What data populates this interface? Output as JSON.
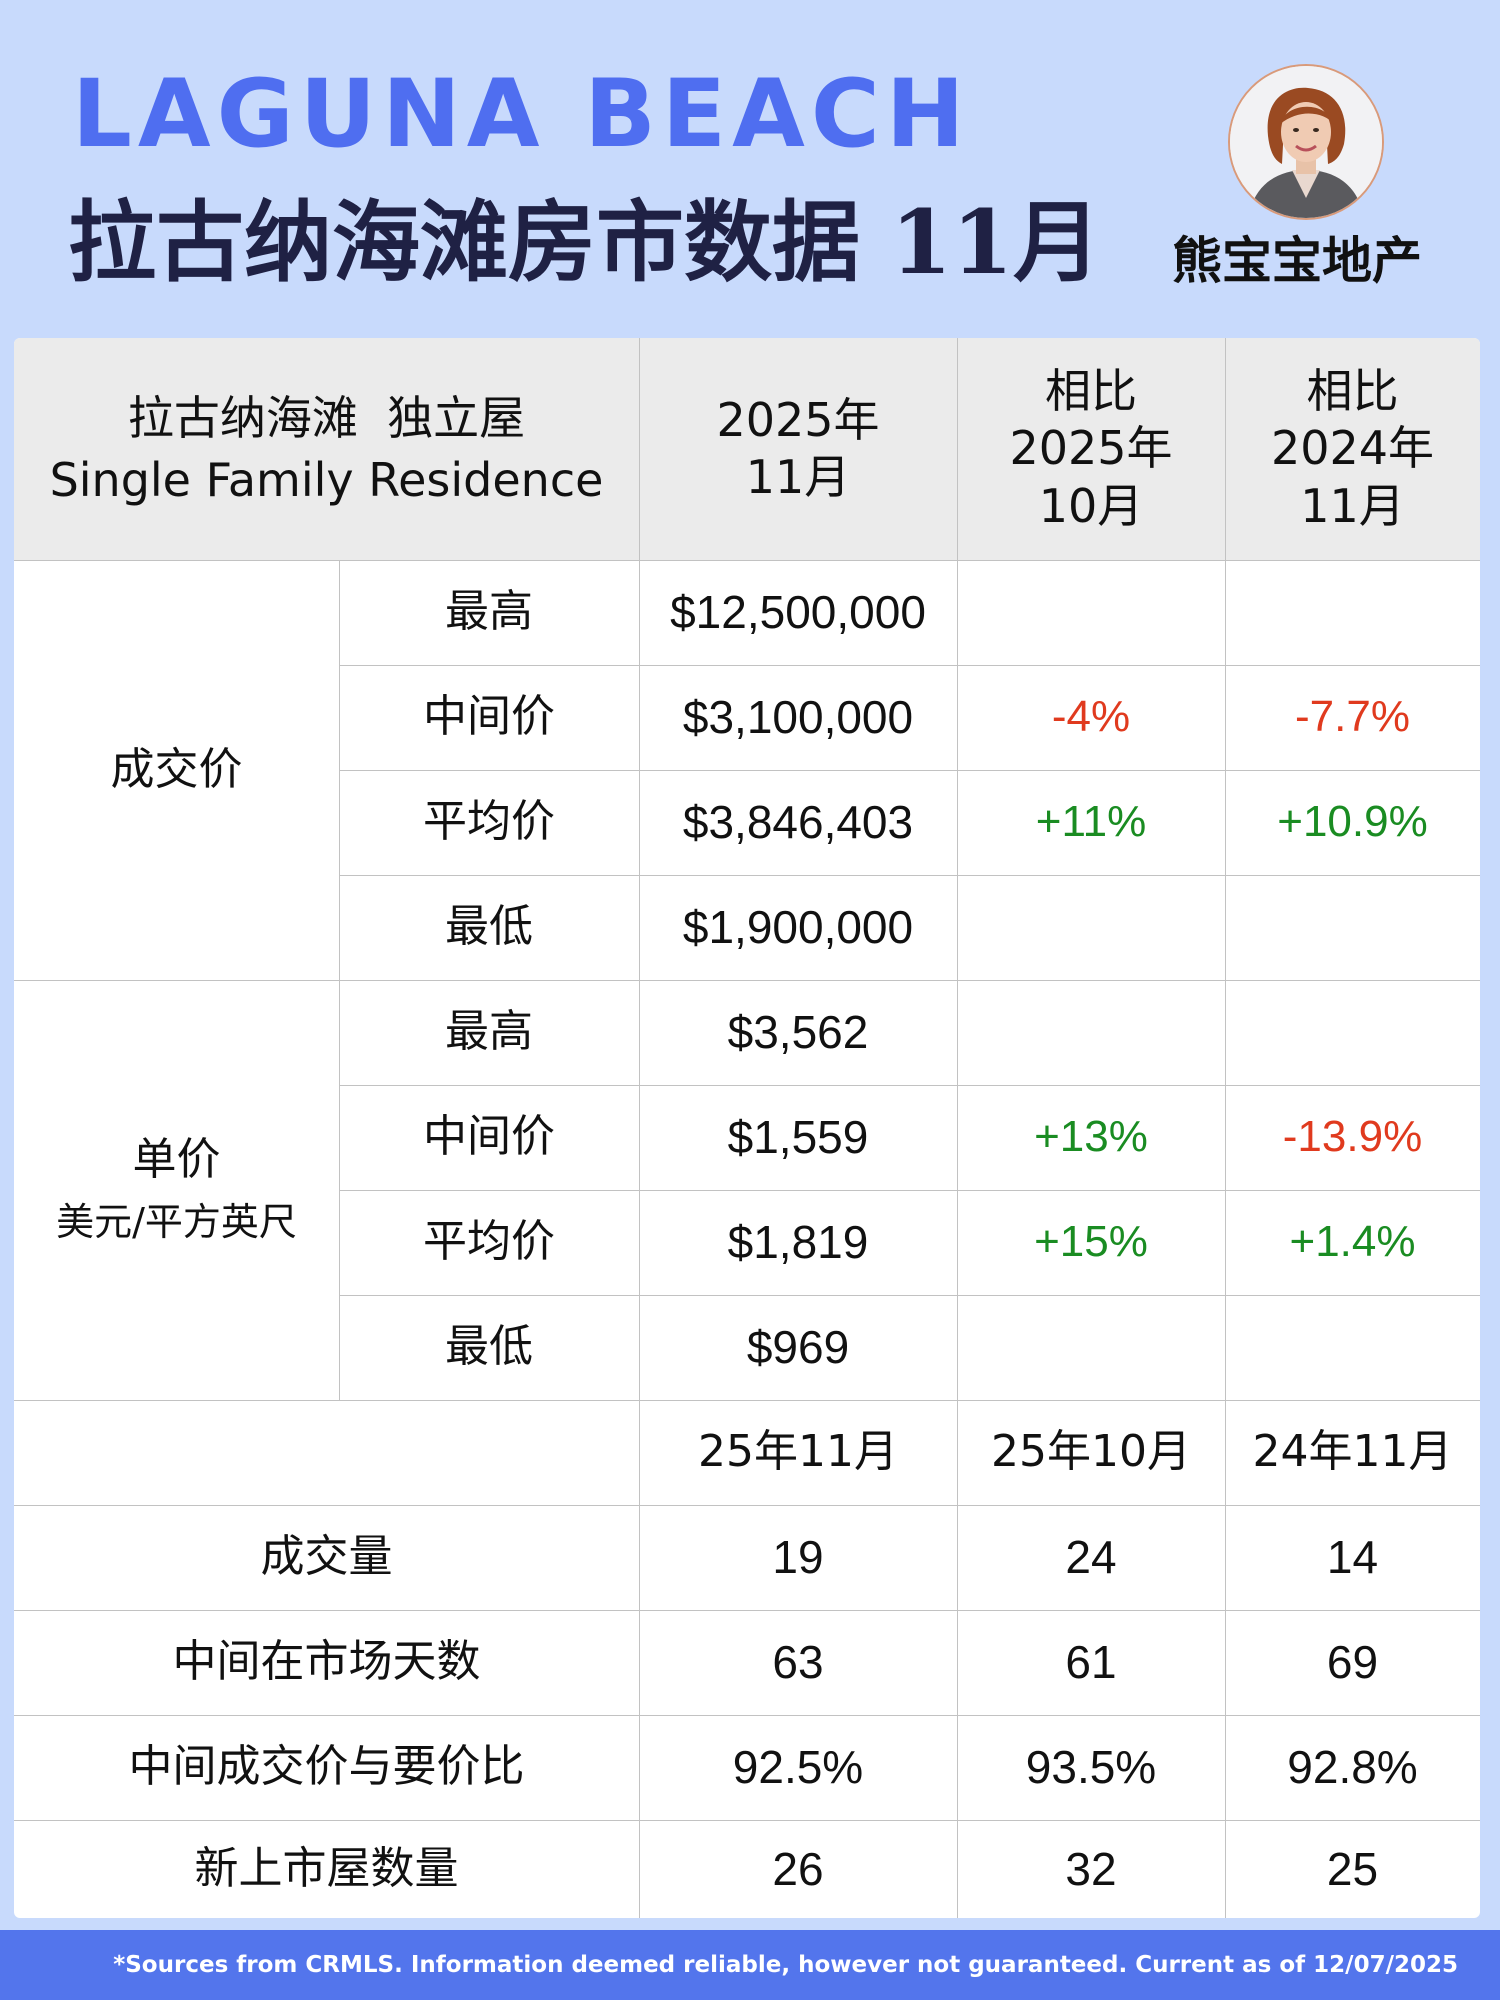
{
  "header": {
    "title_en": "LAGUNA BEACH",
    "title_zh": "拉古纳海滩房市数据 11月",
    "brand": "熊宝宝地产"
  },
  "table": {
    "head": {
      "col0_line1": "拉古纳海滩  独立屋",
      "col0_line2": "Single Family Residence",
      "col1_line1": "2025年",
      "col1_line2": "11月",
      "col2_line1": "相比",
      "col2_line2": "2025年",
      "col2_line3": "10月",
      "col3_line1": "相比",
      "col3_line2": "2024年",
      "col3_line3": "11月"
    },
    "price_group": {
      "label": "成交价",
      "rows": [
        {
          "label": "最高",
          "value": "$12,500,000",
          "vs_last_month": "",
          "vs_last_year": ""
        },
        {
          "label": "中间价",
          "value": "$3,100,000",
          "vs_last_month": "-4%",
          "vs_last_year": "-7.7%"
        },
        {
          "label": "平均价",
          "value": "$3,846,403",
          "vs_last_month": "+11%",
          "vs_last_year": "+10.9%"
        },
        {
          "label": "最低",
          "value": "$1,900,000",
          "vs_last_month": "",
          "vs_last_year": ""
        }
      ]
    },
    "unit_group": {
      "label": "单价",
      "sublabel": "美元/平方英尺",
      "rows": [
        {
          "label": "最高",
          "value": "$3,562",
          "vs_last_month": "",
          "vs_last_year": ""
        },
        {
          "label": "中间价",
          "value": "$1,559",
          "vs_last_month": "+13%",
          "vs_last_year": "-13.9%"
        },
        {
          "label": "平均价",
          "value": "$1,819",
          "vs_last_month": "+15%",
          "vs_last_year": "+1.4%"
        },
        {
          "label": "最低",
          "value": "$969",
          "vs_last_month": "",
          "vs_last_year": ""
        }
      ]
    },
    "period_head": [
      "25年11月",
      "25年10月",
      "24年11月"
    ],
    "stats": [
      {
        "label": "成交量",
        "values": [
          "19",
          "24",
          "14"
        ]
      },
      {
        "label": "中间在市场天数",
        "values": [
          "63",
          "61",
          "69"
        ]
      },
      {
        "label": "中间成交价与要价比",
        "values": [
          "92.5%",
          "93.5%",
          "92.8%"
        ]
      },
      {
        "label": "新上市屋数量",
        "values": [
          "26",
          "32",
          "25"
        ]
      }
    ],
    "colors": {
      "positive": "#1a8c22",
      "negative": "#e03a1e"
    }
  },
  "footer": {
    "note": "*Sources from CRMLS. Information deemed reliable, however not guaranteed. Current as of 12/07/2025"
  }
}
